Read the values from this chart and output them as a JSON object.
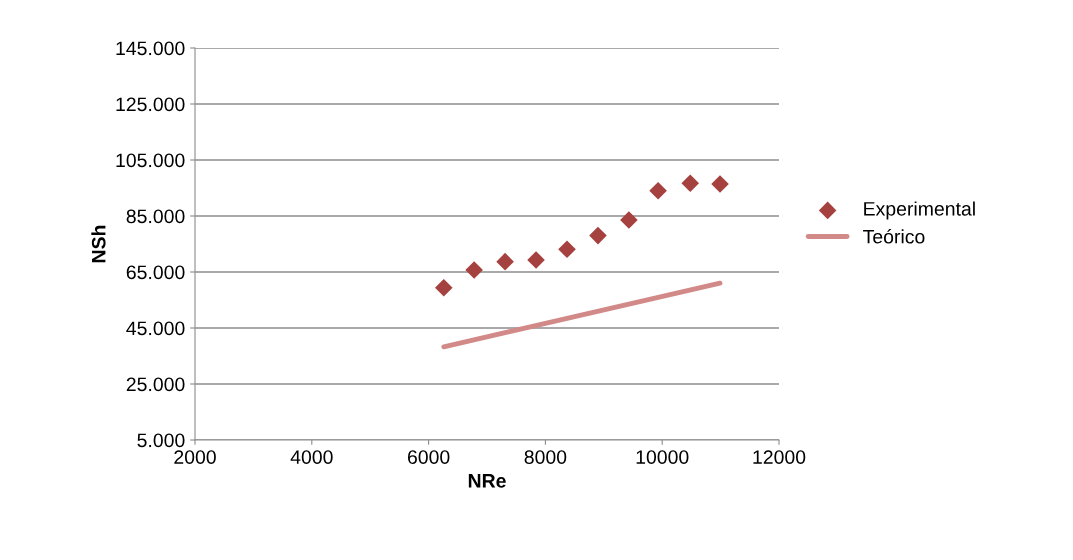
{
  "chart_data": {
    "type": "scatter",
    "xlabel": "NRe",
    "ylabel": "NSh",
    "xlim": [
      2000,
      12000
    ],
    "xticks": [
      2000,
      4000,
      6000,
      8000,
      10000,
      12000
    ],
    "ylim": [
      5,
      145
    ],
    "yticks": [
      {
        "value": 5,
        "label": "5.000"
      },
      {
        "value": 25,
        "label": "25.000"
      },
      {
        "value": 45,
        "label": "45.000"
      },
      {
        "value": 65,
        "label": "65.000"
      },
      {
        "value": 85,
        "label": "85.000"
      },
      {
        "value": 105,
        "label": "105.000"
      },
      {
        "value": 125,
        "label": "125.000"
      },
      {
        "value": 145,
        "label": "145.000"
      }
    ],
    "grid": "y",
    "legend": "right",
    "series": [
      {
        "name": "Experimental",
        "marker": "diamond",
        "color": "#a5423f",
        "x": [
          6260,
          6780,
          7310,
          7840,
          8370,
          8900,
          9430,
          9930,
          10480,
          10990
        ],
        "values": [
          59.4,
          65.7,
          68.7,
          69.3,
          73.1,
          78.0,
          83.6,
          94.0,
          96.7,
          96.4
        ]
      },
      {
        "name": "Teórico",
        "type": "line",
        "marker": "none",
        "color": "#d28a89",
        "x": [
          6260,
          10990
        ],
        "values": [
          38.3,
          61.0
        ]
      }
    ]
  }
}
